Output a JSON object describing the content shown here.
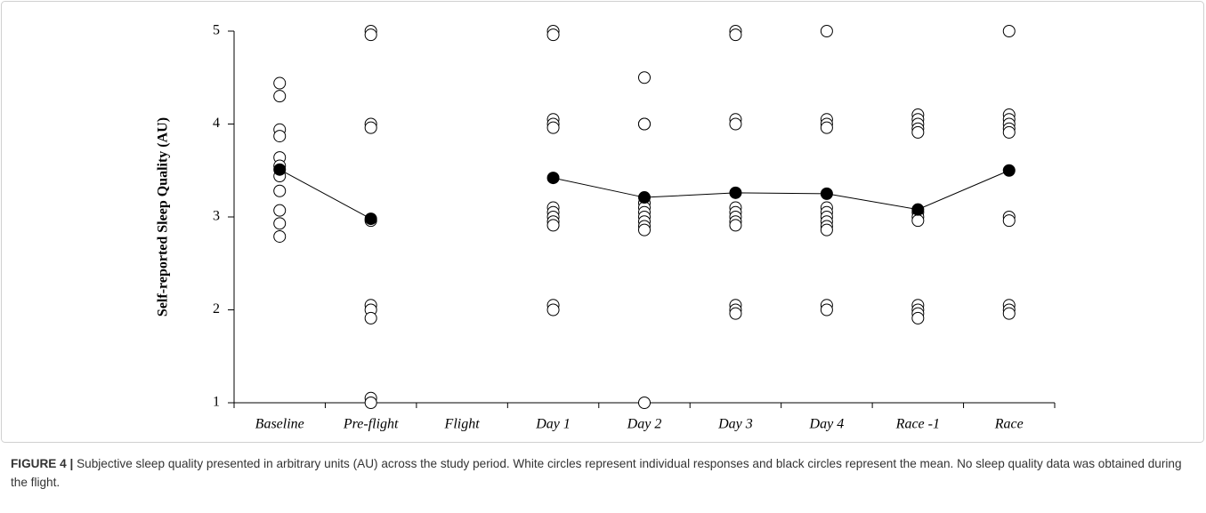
{
  "chart_data": {
    "type": "strip",
    "y_label": "Self-reported Sleep Quality (AU)",
    "categories": [
      "Baseline",
      "Pre-flight",
      "Flight",
      "Day 1",
      "Day 2",
      "Day 3",
      "Day 4",
      "Race -1",
      "Race"
    ],
    "individual_values": [
      [
        4.44,
        4.3,
        3.94,
        3.87,
        3.64,
        3.55,
        3.44,
        3.28,
        3.07,
        2.93,
        2.79
      ],
      [
        5.0,
        4.96,
        4.0,
        3.96,
        2.96,
        2.05,
        2.0,
        1.91,
        1.05,
        1.0
      ],
      [],
      [
        5.0,
        4.96,
        4.05,
        4.0,
        3.96,
        3.1,
        3.05,
        3.0,
        2.95,
        2.91,
        2.05,
        2.0
      ],
      [
        4.5,
        4.0,
        4.0,
        3.15,
        3.1,
        3.05,
        3.0,
        2.95,
        2.9,
        2.86,
        1.0
      ],
      [
        5.0,
        4.96,
        4.05,
        4.0,
        3.1,
        3.05,
        3.0,
        2.95,
        2.91,
        2.05,
        2.0,
        1.96
      ],
      [
        5.0,
        4.05,
        4.0,
        3.96,
        3.1,
        3.05,
        3.0,
        2.95,
        2.9,
        2.86,
        2.05,
        2.0
      ],
      [
        4.1,
        4.05,
        4.0,
        3.95,
        3.91,
        3.05,
        3.0,
        2.96,
        2.05,
        2.0,
        1.96,
        1.91
      ],
      [
        5.0,
        4.1,
        4.05,
        4.0,
        3.95,
        3.91,
        3.0,
        2.96,
        2.05,
        2.0,
        1.96
      ]
    ],
    "individual_color": "#ffffff",
    "mean_values": [
      3.51,
      2.98,
      null,
      3.42,
      3.21,
      3.26,
      3.25,
      3.08,
      3.5
    ],
    "mean_color": "#000000",
    "ylim": [
      1,
      5
    ],
    "yticks": [
      1,
      2,
      3,
      4,
      5
    ],
    "grid": false
  },
  "caption": {
    "label": "FIGURE 4 |",
    "text": "Subjective sleep quality presented in arbitrary units (AU) across the study period. White circles represent individual responses and black circles represent the mean. No sleep quality data was obtained during the flight."
  }
}
